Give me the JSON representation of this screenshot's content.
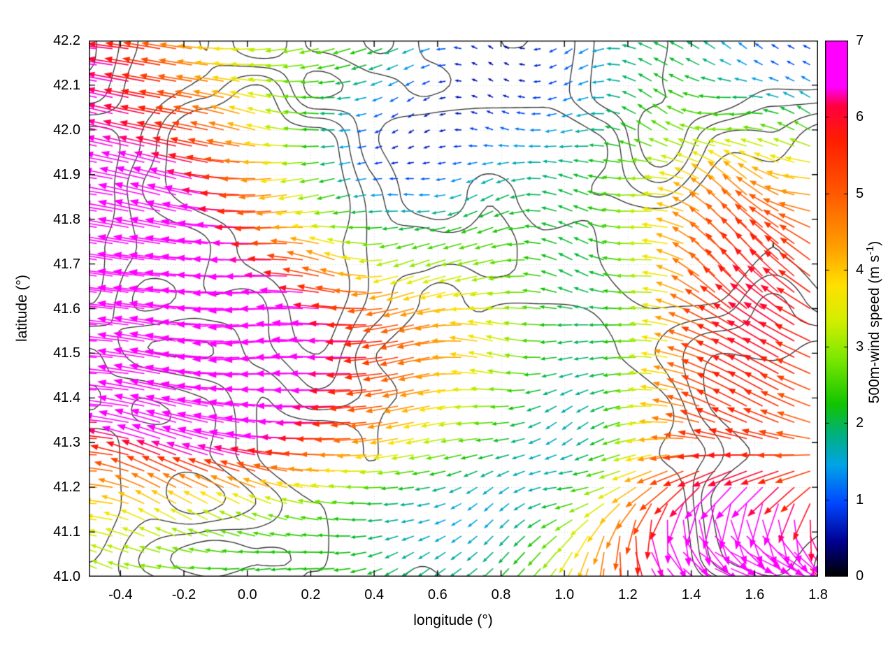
{
  "figure": {
    "background": "#ffffff",
    "x_axis": {
      "label": "longitude (°)",
      "min": -0.5,
      "max": 1.8,
      "tick_values": [
        -0.4,
        -0.2,
        0.0,
        0.2,
        0.4,
        0.6,
        0.8,
        1.0,
        1.2,
        1.4,
        1.6,
        1.8
      ],
      "tick_labels": [
        "-0.4",
        "-0.2",
        "0.0",
        "0.2",
        "0.4",
        "0.6",
        "0.8",
        "1.0",
        "1.2",
        "1.4",
        "1.6",
        "1.8"
      ]
    },
    "y_axis": {
      "label": "latitude (°)",
      "min": 41.0,
      "max": 42.2,
      "tick_values": [
        41.0,
        41.1,
        41.2,
        41.3,
        41.4,
        41.5,
        41.6,
        41.7,
        41.8,
        41.9,
        42.0,
        42.1,
        42.2
      ],
      "tick_labels": [
        "41.0",
        "41.1",
        "41.2",
        "41.3",
        "41.4",
        "41.5",
        "41.6",
        "41.7",
        "41.8",
        "41.9",
        "42.0",
        "42.1",
        "42.2"
      ]
    },
    "colorbar": {
      "label_main": "500m-wind speed (m s",
      "label_sup": "-1",
      "label_end": ")",
      "min": 0,
      "max": 7,
      "tick_values": [
        0,
        1,
        2,
        3,
        4,
        5,
        6,
        7
      ],
      "tick_labels": [
        "0",
        "1",
        "2",
        "3",
        "4",
        "5",
        "6",
        "7"
      ]
    }
  },
  "chart_data": {
    "type": "quiver",
    "title": "",
    "xlabel": "longitude (°)",
    "ylabel": "latitude (°)",
    "colorbar_label": "500m-wind speed (m s-1)",
    "xlim": [
      -0.5,
      1.8
    ],
    "ylim": [
      41.0,
      42.2
    ],
    "speed_range_ms": [
      0,
      7
    ],
    "grid": true,
    "overlay": "black terrain contour lines",
    "arrow_grid": {
      "nx": 46,
      "ny": 33,
      "dlon": 0.05,
      "dlat": 0.0375
    },
    "base_direction_deg": 180,
    "palette_stops": [
      [
        0.0,
        "#000000"
      ],
      [
        0.45,
        "#000090"
      ],
      [
        0.95,
        "#0046ff"
      ],
      [
        1.45,
        "#00a4e8"
      ],
      [
        1.85,
        "#00b080"
      ],
      [
        2.25,
        "#12c400"
      ],
      [
        2.85,
        "#7de800"
      ],
      [
        3.35,
        "#d4ee00"
      ],
      [
        3.8,
        "#ffe100"
      ],
      [
        4.3,
        "#ffa000"
      ],
      [
        5.0,
        "#ff5a00"
      ],
      [
        5.7,
        "#ff1e00"
      ],
      [
        6.15,
        "#ff0040"
      ],
      [
        6.4,
        "#ff00ff"
      ],
      [
        7.0,
        "#ff00ff"
      ]
    ],
    "speed_field": {
      "base": 3.4,
      "noise_amp": 1.2,
      "blobs": [
        {
          "lon": -0.5,
          "lat": 41.8,
          "rx": 0.55,
          "ry": 0.5,
          "amp": 3.8
        },
        {
          "lon": -0.2,
          "lat": 41.55,
          "rx": 0.45,
          "ry": 0.3,
          "amp": 3.0
        },
        {
          "lon": 0.3,
          "lat": 41.5,
          "rx": 0.5,
          "ry": 0.18,
          "amp": 2.6
        },
        {
          "lon": 0.2,
          "lat": 41.3,
          "rx": 0.55,
          "ry": 0.12,
          "amp": 2.2
        },
        {
          "lon": 1.6,
          "lat": 41.55,
          "rx": 0.42,
          "ry": 0.5,
          "amp": 3.4
        },
        {
          "lon": 1.55,
          "lat": 41.05,
          "rx": 0.55,
          "ry": 0.2,
          "amp": 3.2
        },
        {
          "lon": 0.75,
          "lat": 42.15,
          "rx": 0.6,
          "ry": 0.3,
          "amp": -2.4
        },
        {
          "lon": 1.05,
          "lat": 41.55,
          "rx": 0.28,
          "ry": 0.35,
          "amp": -2.0
        },
        {
          "lon": 0.6,
          "lat": 41.05,
          "rx": 0.5,
          "ry": 0.25,
          "amp": -1.6
        },
        {
          "lon": 1.7,
          "lat": 42.15,
          "rx": 0.35,
          "ry": 0.25,
          "amp": -2.2
        },
        {
          "lon": 0.9,
          "lat": 41.25,
          "rx": 0.4,
          "ry": 0.2,
          "amp": -1.2
        },
        {
          "lon": 0.45,
          "lat": 41.95,
          "rx": 0.45,
          "ry": 0.3,
          "amp": -1.0
        }
      ]
    },
    "direction_field": {
      "jitter_max_deg": 46,
      "blobs": [
        {
          "lon": 1.6,
          "lat": 41.6,
          "rx": 0.4,
          "ry": 0.5,
          "delta": -38
        },
        {
          "lon": 1.55,
          "lat": 41.03,
          "rx": 0.55,
          "ry": 0.17,
          "delta": 165
        },
        {
          "lon": -0.25,
          "lat": 41.95,
          "rx": 0.5,
          "ry": 0.4,
          "delta": -14
        },
        {
          "lon": -0.3,
          "lat": 41.12,
          "rx": 0.4,
          "ry": 0.25,
          "delta": -22
        },
        {
          "lon": 0.5,
          "lat": 41.45,
          "rx": 0.6,
          "ry": 0.3,
          "delta": 6
        }
      ]
    },
    "contours": {
      "levels": [
        0.44,
        0.5,
        0.56,
        0.62
      ],
      "color": "#2f2f2f"
    },
    "seed": 7
  }
}
